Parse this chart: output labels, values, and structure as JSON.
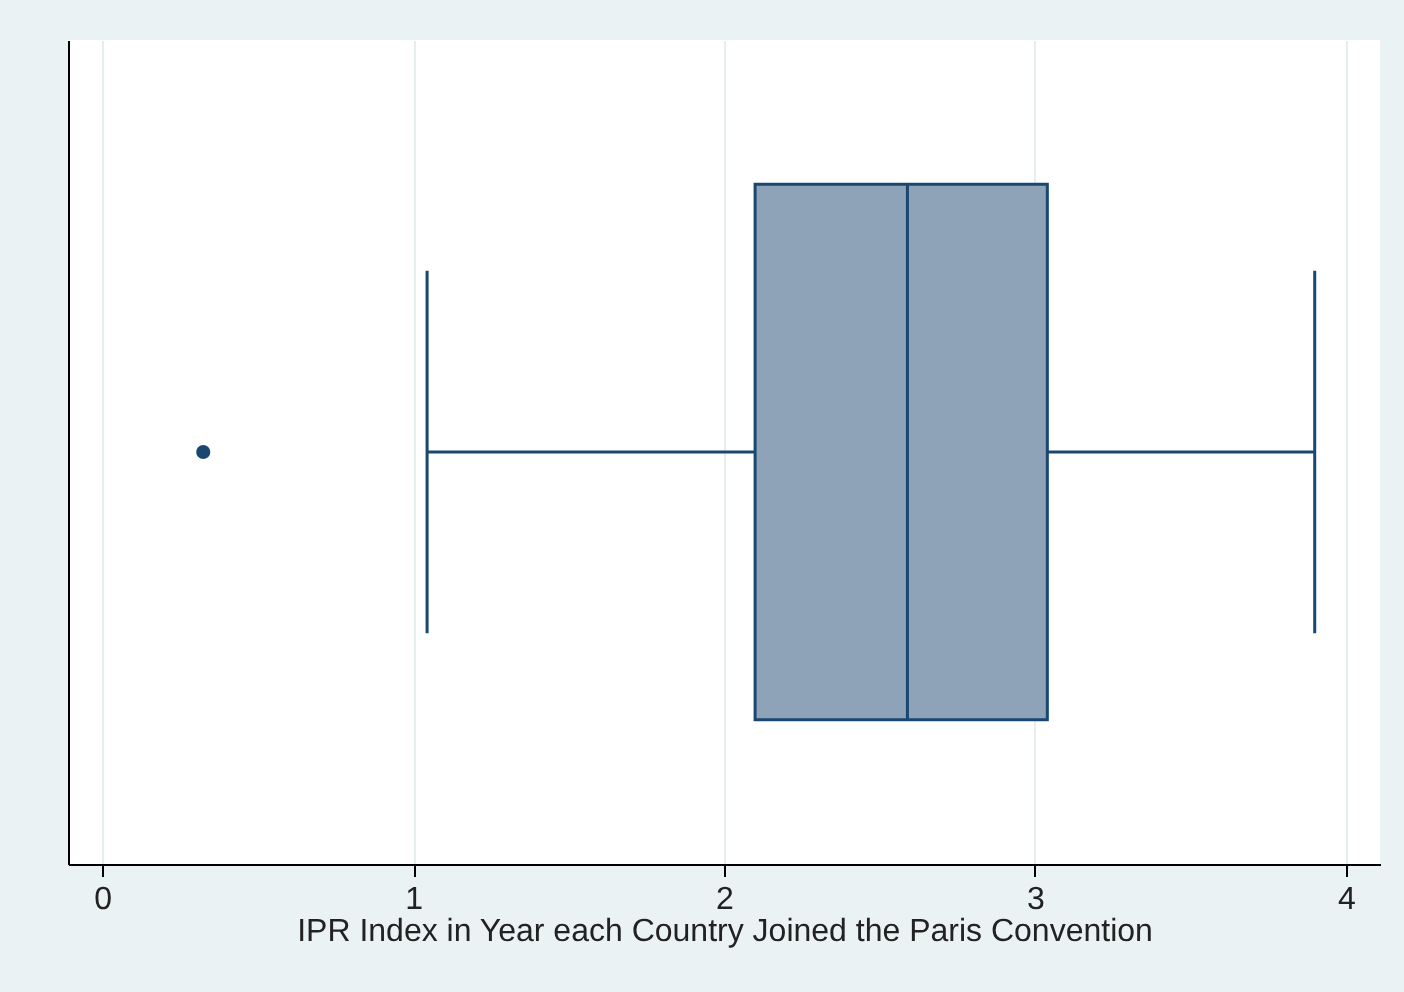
{
  "chart_data": {
    "type": "box",
    "orientation": "horizontal",
    "xlabel": "IPR Index in Year each Country Joined the Paris Convention",
    "categories": [
      null
    ],
    "boxes": [
      {
        "low": 1.045,
        "q1": 2.1,
        "median": 2.59,
        "q3": 3.04,
        "high": 3.9,
        "outliers": [
          0.325
        ]
      }
    ],
    "color": "#8ea3b8",
    "xlim": [
      -0.11,
      4.11
    ],
    "xticks": [
      0,
      1,
      2,
      3,
      4
    ],
    "grid": "x",
    "tick_labels": "x"
  }
}
